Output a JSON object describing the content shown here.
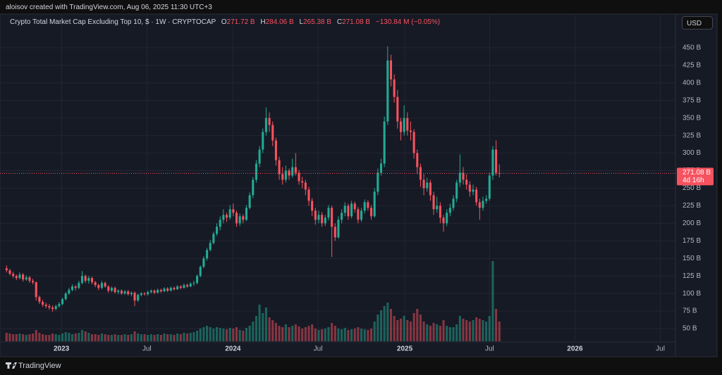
{
  "header": {
    "attribution": "aloisov created with TradingView.com, Aug 06, 2025 11:30 UTC+3",
    "currency": "USD",
    "brand": "TradingView"
  },
  "chart_data": {
    "type": "candlestick",
    "title": "Crypto Total Market Cap Excluding Top 10, $ · 1W · CRYPTOCAP",
    "ohlc_legend": [
      {
        "label": "O",
        "value": "271.72 B"
      },
      {
        "label": "H",
        "value": "284.06 B"
      },
      {
        "label": "L",
        "value": "265.38 B"
      },
      {
        "label": "C",
        "value": "271.08 B"
      }
    ],
    "change": "−130.84 M (−0.05%)",
    "last_price_label": "271.08 B",
    "countdown": "4d 16h",
    "up_color": "#22ab94",
    "down_color": "#f7525f",
    "grid": true,
    "ylim": [
      32,
      496
    ],
    "yticks": [
      {
        "value": 50,
        "label": "50 B"
      },
      {
        "value": 75,
        "label": "75 B"
      },
      {
        "value": 100,
        "label": "100 B"
      },
      {
        "value": 125,
        "label": "125 B"
      },
      {
        "value": 150,
        "label": "150 B"
      },
      {
        "value": 175,
        "label": "175 B"
      },
      {
        "value": 200,
        "label": "200 B"
      },
      {
        "value": 225,
        "label": "225 B"
      },
      {
        "value": 250,
        "label": "250 B"
      },
      {
        "value": 275,
        "label": "275 B"
      },
      {
        "value": 300,
        "label": "300 B"
      },
      {
        "value": 325,
        "label": "325 B"
      },
      {
        "value": 350,
        "label": "350 B"
      },
      {
        "value": 375,
        "label": "375 B"
      },
      {
        "value": 400,
        "label": "400 B"
      },
      {
        "value": 425,
        "label": "425 B"
      },
      {
        "value": 450,
        "label": "450 B"
      }
    ],
    "xlim": [
      -2,
      203.6
    ],
    "xticks": [
      {
        "value": 16.7,
        "label": "2023"
      },
      {
        "value": 42.7,
        "label": "Jul"
      },
      {
        "value": 68.9,
        "label": "2024"
      },
      {
        "value": 94.8,
        "label": "Jul"
      },
      {
        "value": 121.2,
        "label": "2025"
      },
      {
        "value": 147,
        "label": "Jul"
      },
      {
        "value": 173,
        "label": "2026"
      },
      {
        "value": 199,
        "label": "Jul"
      }
    ],
    "candles": [
      [
        136,
        140,
        130,
        133
      ],
      [
        133,
        135,
        126,
        128
      ],
      [
        128,
        131,
        122,
        125
      ],
      [
        125,
        127,
        119,
        122
      ],
      [
        122,
        130,
        120,
        127
      ],
      [
        127,
        129,
        117,
        120
      ],
      [
        120,
        126,
        118,
        123
      ],
      [
        123,
        125,
        115,
        118
      ],
      [
        118,
        121,
        113,
        116
      ],
      [
        116,
        117,
        90,
        95
      ],
      [
        95,
        97,
        85,
        88
      ],
      [
        88,
        91,
        81,
        84
      ],
      [
        84,
        87,
        79,
        82
      ],
      [
        82,
        85,
        77,
        80
      ],
      [
        80,
        83,
        74,
        78
      ],
      [
        78,
        84,
        76,
        82
      ],
      [
        82,
        88,
        80,
        85
      ],
      [
        85,
        94,
        83,
        92
      ],
      [
        92,
        102,
        90,
        100
      ],
      [
        100,
        108,
        98,
        105
      ],
      [
        105,
        113,
        103,
        110
      ],
      [
        110,
        112,
        104,
        108
      ],
      [
        108,
        118,
        106,
        115
      ],
      [
        115,
        132,
        113,
        125
      ],
      [
        125,
        127,
        115,
        118
      ],
      [
        118,
        125,
        114,
        122
      ],
      [
        122,
        124,
        113,
        116
      ],
      [
        116,
        118,
        109,
        112
      ],
      [
        112,
        114,
        105,
        108
      ],
      [
        108,
        118,
        106,
        115
      ],
      [
        115,
        117,
        108,
        110
      ],
      [
        110,
        112,
        101,
        104
      ],
      [
        104,
        110,
        102,
        108
      ],
      [
        108,
        110,
        100,
        102
      ],
      [
        102,
        106,
        99,
        104
      ],
      [
        104,
        106,
        98,
        100
      ],
      [
        100,
        105,
        98,
        103
      ],
      [
        103,
        105,
        97,
        99
      ],
      [
        99,
        103,
        96,
        101
      ],
      [
        101,
        103,
        82,
        90
      ],
      [
        90,
        100,
        88,
        98
      ],
      [
        98,
        102,
        96,
        100
      ],
      [
        100,
        102,
        97,
        99
      ],
      [
        99,
        104,
        97,
        102
      ],
      [
        102,
        106,
        100,
        104
      ],
      [
        104,
        106,
        99,
        101
      ],
      [
        101,
        107,
        100,
        105
      ],
      [
        105,
        107,
        101,
        103
      ],
      [
        103,
        109,
        102,
        107
      ],
      [
        107,
        109,
        102,
        104
      ],
      [
        104,
        110,
        103,
        108
      ],
      [
        108,
        110,
        104,
        106
      ],
      [
        106,
        112,
        105,
        110
      ],
      [
        110,
        112,
        106,
        108
      ],
      [
        108,
        114,
        107,
        112
      ],
      [
        112,
        114,
        108,
        110
      ],
      [
        110,
        116,
        109,
        114
      ],
      [
        114,
        118,
        111,
        115
      ],
      [
        115,
        127,
        113,
        125
      ],
      [
        125,
        140,
        123,
        138
      ],
      [
        138,
        153,
        136,
        150
      ],
      [
        150,
        165,
        147,
        162
      ],
      [
        162,
        176,
        160,
        172
      ],
      [
        172,
        188,
        170,
        185
      ],
      [
        185,
        200,
        182,
        195
      ],
      [
        195,
        210,
        190,
        205
      ],
      [
        205,
        220,
        200,
        212
      ],
      [
        212,
        215,
        202,
        208
      ],
      [
        208,
        226,
        205,
        220
      ],
      [
        220,
        228,
        210,
        215
      ],
      [
        215,
        218,
        195,
        200
      ],
      [
        200,
        214,
        196,
        210
      ],
      [
        210,
        213,
        200,
        205
      ],
      [
        205,
        226,
        203,
        222
      ],
      [
        222,
        244,
        220,
        240
      ],
      [
        240,
        266,
        236,
        262
      ],
      [
        262,
        290,
        258,
        285
      ],
      [
        285,
        310,
        280,
        305
      ],
      [
        305,
        335,
        300,
        330
      ],
      [
        330,
        365,
        325,
        350
      ],
      [
        350,
        358,
        330,
        340
      ],
      [
        340,
        345,
        310,
        318
      ],
      [
        318,
        322,
        282,
        290
      ],
      [
        290,
        295,
        262,
        270
      ],
      [
        270,
        280,
        255,
        262
      ],
      [
        262,
        282,
        258,
        275
      ],
      [
        275,
        278,
        262,
        268
      ],
      [
        268,
        292,
        265,
        280
      ],
      [
        280,
        300,
        268,
        272
      ],
      [
        272,
        276,
        255,
        260
      ],
      [
        260,
        266,
        250,
        258
      ],
      [
        258,
        262,
        240,
        248
      ],
      [
        248,
        252,
        225,
        232
      ],
      [
        232,
        236,
        210,
        218
      ],
      [
        218,
        222,
        198,
        205
      ],
      [
        205,
        218,
        200,
        212
      ],
      [
        212,
        216,
        195,
        200
      ],
      [
        200,
        212,
        196,
        208
      ],
      [
        208,
        226,
        204,
        222
      ],
      [
        222,
        225,
        152,
        195
      ],
      [
        195,
        200,
        175,
        180
      ],
      [
        180,
        210,
        178,
        205
      ],
      [
        205,
        220,
        200,
        215
      ],
      [
        215,
        230,
        210,
        225
      ],
      [
        225,
        228,
        205,
        210
      ],
      [
        210,
        232,
        207,
        228
      ],
      [
        228,
        231,
        215,
        220
      ],
      [
        220,
        223,
        200,
        205
      ],
      [
        205,
        222,
        202,
        218
      ],
      [
        218,
        234,
        214,
        230
      ],
      [
        230,
        233,
        218,
        222
      ],
      [
        222,
        226,
        205,
        210
      ],
      [
        210,
        250,
        208,
        245
      ],
      [
        245,
        278,
        240,
        272
      ],
      [
        272,
        292,
        268,
        285
      ],
      [
        285,
        352,
        280,
        345
      ],
      [
        345,
        452,
        340,
        432
      ],
      [
        432,
        440,
        395,
        405
      ],
      [
        405,
        412,
        372,
        380
      ],
      [
        380,
        390,
        335,
        345
      ],
      [
        345,
        350,
        318,
        330
      ],
      [
        330,
        368,
        325,
        350
      ],
      [
        350,
        358,
        325,
        332
      ],
      [
        332,
        345,
        318,
        330
      ],
      [
        330,
        334,
        292,
        300
      ],
      [
        300,
        305,
        270,
        280
      ],
      [
        280,
        285,
        252,
        262
      ],
      [
        262,
        270,
        240,
        250
      ],
      [
        250,
        265,
        245,
        258
      ],
      [
        258,
        262,
        232,
        240
      ],
      [
        240,
        245,
        212,
        220
      ],
      [
        220,
        238,
        215,
        225
      ],
      [
        225,
        230,
        200,
        208
      ],
      [
        208,
        212,
        188,
        200
      ],
      [
        200,
        220,
        196,
        215
      ],
      [
        215,
        228,
        210,
        222
      ],
      [
        222,
        240,
        218,
        235
      ],
      [
        235,
        262,
        230,
        258
      ],
      [
        258,
        298,
        252,
        272
      ],
      [
        272,
        280,
        255,
        262
      ],
      [
        262,
        270,
        248,
        255
      ],
      [
        255,
        260,
        238,
        245
      ],
      [
        245,
        255,
        240,
        248
      ],
      [
        248,
        252,
        225,
        230
      ],
      [
        230,
        235,
        205,
        222
      ],
      [
        222,
        238,
        218,
        232
      ],
      [
        232,
        240,
        228,
        235
      ],
      [
        235,
        272,
        232,
        268
      ],
      [
        268,
        310,
        262,
        305
      ],
      [
        305,
        318,
        268,
        272
      ],
      [
        271.72,
        284.06,
        265.38,
        271.08
      ]
    ],
    "volume": [
      12,
      11,
      10,
      10,
      11,
      10,
      9,
      10,
      11,
      16,
      12,
      10,
      9,
      9,
      11,
      10,
      9,
      11,
      13,
      12,
      10,
      11,
      12,
      16,
      14,
      12,
      10,
      10,
      9,
      11,
      10,
      9,
      9,
      10,
      9,
      9,
      10,
      9,
      10,
      14,
      11,
      10,
      10,
      9,
      10,
      9,
      10,
      9,
      11,
      10,
      10,
      9,
      11,
      10,
      12,
      11,
      12,
      13,
      15,
      18,
      20,
      22,
      20,
      18,
      20,
      19,
      18,
      17,
      19,
      18,
      20,
      16,
      15,
      19,
      22,
      28,
      36,
      52,
      40,
      48,
      34,
      30,
      26,
      22,
      20,
      24,
      20,
      22,
      24,
      21,
      18,
      20,
      22,
      24,
      18,
      16,
      17,
      18,
      20,
      26,
      22,
      18,
      17,
      19,
      16,
      17,
      18,
      20,
      18,
      17,
      16,
      18,
      28,
      38,
      44,
      50,
      55,
      46,
      36,
      30,
      32,
      36,
      30,
      28,
      40,
      46,
      38,
      28,
      24,
      22,
      26,
      24,
      22,
      30,
      22,
      20,
      20,
      24,
      36,
      32,
      30,
      28,
      30,
      34,
      32,
      30,
      28,
      36,
      114,
      46,
      28
    ]
  }
}
